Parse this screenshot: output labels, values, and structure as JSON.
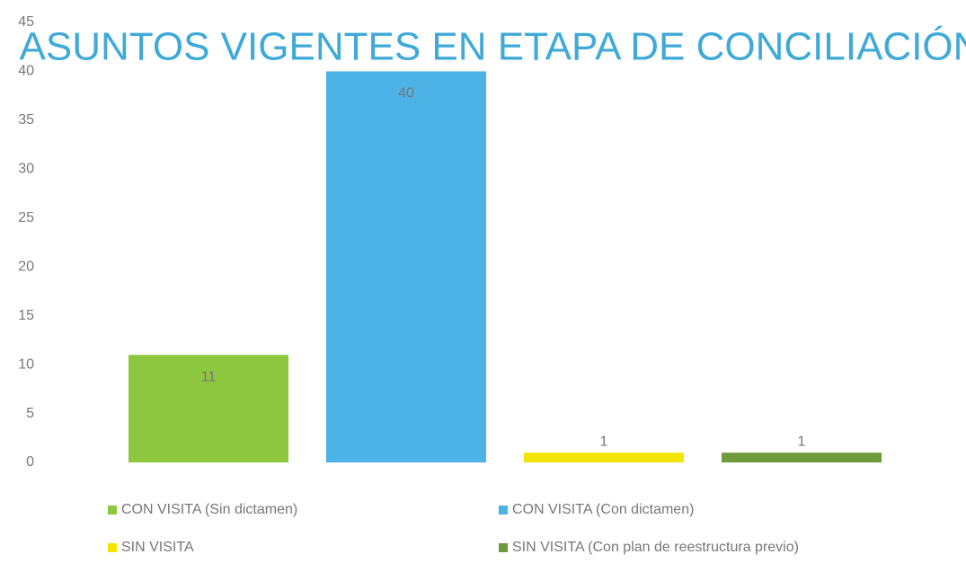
{
  "chart_data": {
    "type": "bar",
    "title": "ASUNTOS VIGENTES EN ETAPA DE CONCILIACIÓN",
    "categories": [
      null
    ],
    "series": [
      {
        "name": "CON VISITA (Sin dictamen)",
        "color": "#8dc63f",
        "values": [
          11
        ]
      },
      {
        "name": "CON VISITA (Con dictamen)",
        "color": "#4db3e6",
        "values": [
          40
        ]
      },
      {
        "name": "SIN VISITA",
        "color": "#f2e600",
        "values": [
          1
        ]
      },
      {
        "name": "SIN VISITA (Con plan de reestructura previo)",
        "color": "#6e9a3c",
        "values": [
          1
        ]
      }
    ],
    "ylim": [
      0,
      45
    ],
    "yticks": [
      0,
      5,
      10,
      15,
      20,
      25,
      30,
      35,
      40,
      45
    ],
    "grid": false,
    "legend": "bottom"
  }
}
